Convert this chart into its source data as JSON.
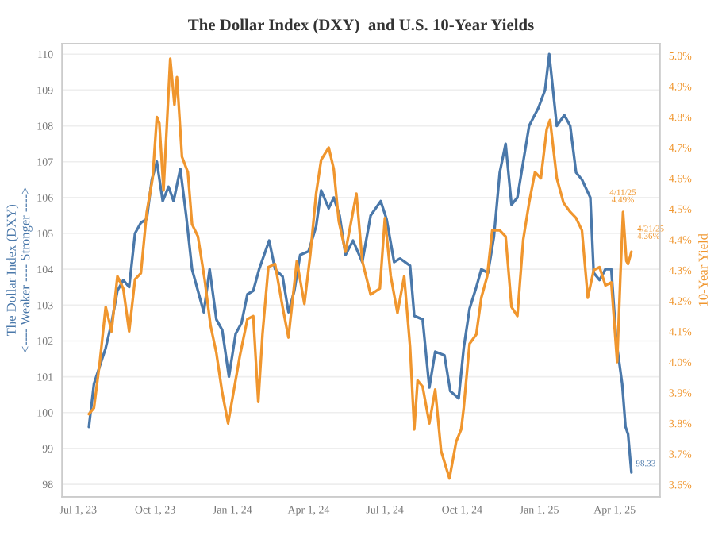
{
  "chart_data": {
    "type": "line",
    "title": "The Dollar Index (DXY)  and U.S. 10-Year Yields",
    "ylabel": "The Dollar Index (DXY)\n<---- Weaker ---- Stronger ---->",
    "y2label": "10-Year Yield",
    "xlim": [
      "2023-06-12",
      "2025-05-25"
    ],
    "xticks": [
      {
        "value": "2023-07-01",
        "label": "Jul 1, 23"
      },
      {
        "value": "2023-10-01",
        "label": "Oct 1, 23"
      },
      {
        "value": "2024-01-01",
        "label": "Jan 1, 24"
      },
      {
        "value": "2024-04-01",
        "label": "Apr 1, 24"
      },
      {
        "value": "2024-07-01",
        "label": "Jul 1, 24"
      },
      {
        "value": "2024-10-01",
        "label": "Oct 1, 24"
      },
      {
        "value": "2025-01-01",
        "label": "Jan 1, 25"
      },
      {
        "value": "2025-04-01",
        "label": "Apr 1, 25"
      }
    ],
    "ylim": [
      97.65,
      110.3
    ],
    "yticks": [
      98,
      99,
      100,
      101,
      102,
      103,
      104,
      105,
      106,
      107,
      108,
      109,
      110
    ],
    "y2lim": [
      3.56,
      5.04
    ],
    "y2ticks": [
      {
        "value": 3.6,
        "label": "3.6%"
      },
      {
        "value": 3.7,
        "label": "3.7%"
      },
      {
        "value": 3.8,
        "label": "3.8%"
      },
      {
        "value": 3.9,
        "label": "3.9%"
      },
      {
        "value": 4.0,
        "label": "4.0%"
      },
      {
        "value": 4.1,
        "label": "4.1%"
      },
      {
        "value": 4.2,
        "label": "4.2%"
      },
      {
        "value": 4.3,
        "label": "4.3%"
      },
      {
        "value": 4.4,
        "label": "4.4%"
      },
      {
        "value": 4.5,
        "label": "4.5%"
      },
      {
        "value": 4.6,
        "label": "4.6%"
      },
      {
        "value": 4.7,
        "label": "4.7%"
      },
      {
        "value": 4.8,
        "label": "4.8%"
      },
      {
        "value": 4.9,
        "label": "4.9%"
      },
      {
        "value": 5.0,
        "label": "5.0%"
      }
    ],
    "grid": "y",
    "legend": false,
    "marker": "none",
    "line_style": "solid",
    "series": [
      {
        "color": "#4a78aa",
        "x": [
          "2023-07-14",
          "2023-07-20",
          "2023-07-27",
          "2023-08-03",
          "2023-08-10",
          "2023-08-17",
          "2023-08-24",
          "2023-08-31",
          "2023-09-07",
          "2023-09-14",
          "2023-09-21",
          "2023-09-27",
          "2023-10-03",
          "2023-10-10",
          "2023-10-17",
          "2023-10-23",
          "2023-10-31",
          "2023-11-07",
          "2023-11-14",
          "2023-11-21",
          "2023-11-28",
          "2023-12-05",
          "2023-12-13",
          "2023-12-20",
          "2023-12-28",
          "2024-01-05",
          "2024-01-12",
          "2024-01-19",
          "2024-01-26",
          "2024-02-02",
          "2024-02-14",
          "2024-02-21",
          "2024-03-01",
          "2024-03-08",
          "2024-03-15",
          "2024-03-22",
          "2024-04-01",
          "2024-04-10",
          "2024-04-16",
          "2024-04-25",
          "2024-05-01",
          "2024-05-08",
          "2024-05-15",
          "2024-05-24",
          "2024-06-04",
          "2024-06-14",
          "2024-06-26",
          "2024-07-03",
          "2024-07-12",
          "2024-07-19",
          "2024-07-31",
          "2024-08-05",
          "2024-08-15",
          "2024-08-23",
          "2024-08-30",
          "2024-09-10",
          "2024-09-17",
          "2024-09-27",
          "2024-10-03",
          "2024-10-10",
          "2024-10-18",
          "2024-10-24",
          "2024-11-01",
          "2024-11-08",
          "2024-11-15",
          "2024-11-22",
          "2024-11-29",
          "2024-12-06",
          "2024-12-13",
          "2024-12-20",
          "2024-12-31",
          "2025-01-08",
          "2025-01-13",
          "2025-01-22",
          "2025-01-31",
          "2025-02-07",
          "2025-02-14",
          "2025-02-21",
          "2025-03-03",
          "2025-03-07",
          "2025-03-14",
          "2025-03-21",
          "2025-03-28",
          "2025-04-03",
          "2025-04-10",
          "2025-04-14",
          "2025-04-17",
          "2025-04-21"
        ],
        "values": [
          99.6,
          100.8,
          101.3,
          101.8,
          102.5,
          103.4,
          103.7,
          103.5,
          105.0,
          105.3,
          105.4,
          106.5,
          107.0,
          105.9,
          106.3,
          105.9,
          106.8,
          105.5,
          104.0,
          103.4,
          102.8,
          104.0,
          102.6,
          102.3,
          101.0,
          102.2,
          102.5,
          103.3,
          103.4,
          104.0,
          104.8,
          104.0,
          103.8,
          102.8,
          103.4,
          104.4,
          104.5,
          105.2,
          106.2,
          105.7,
          106.0,
          105.5,
          104.4,
          104.8,
          104.2,
          105.5,
          105.9,
          105.4,
          104.2,
          104.3,
          104.1,
          102.7,
          102.6,
          100.7,
          101.7,
          101.6,
          100.6,
          100.4,
          101.8,
          102.9,
          103.5,
          104.0,
          103.9,
          104.9,
          106.7,
          107.5,
          105.8,
          106.0,
          107.0,
          108.0,
          108.5,
          109.0,
          110.0,
          108.0,
          108.3,
          108.0,
          106.7,
          106.5,
          106.0,
          103.9,
          103.7,
          104.0,
          104.0,
          102.0,
          100.8,
          99.6,
          99.4,
          98.33
        ]
      },
      {
        "color": "#f0962e",
        "axis": "y2",
        "x": [
          "2023-07-14",
          "2023-07-20",
          "2023-07-27",
          "2023-08-03",
          "2023-08-10",
          "2023-08-17",
          "2023-08-24",
          "2023-08-31",
          "2023-09-07",
          "2023-09-14",
          "2023-09-21",
          "2023-09-28",
          "2023-10-03",
          "2023-10-06",
          "2023-10-11",
          "2023-10-19",
          "2023-10-24",
          "2023-10-27",
          "2023-11-02",
          "2023-11-09",
          "2023-11-14",
          "2023-11-21",
          "2023-11-29",
          "2023-12-06",
          "2023-12-13",
          "2023-12-20",
          "2023-12-27",
          "2024-01-03",
          "2024-01-10",
          "2024-01-19",
          "2024-01-26",
          "2024-02-01",
          "2024-02-06",
          "2024-02-13",
          "2024-02-21",
          "2024-03-01",
          "2024-03-08",
          "2024-03-18",
          "2024-03-27",
          "2024-04-03",
          "2024-04-10",
          "2024-04-16",
          "2024-04-25",
          "2024-05-01",
          "2024-05-07",
          "2024-05-15",
          "2024-05-28",
          "2024-06-04",
          "2024-06-14",
          "2024-06-25",
          "2024-07-01",
          "2024-07-08",
          "2024-07-16",
          "2024-07-24",
          "2024-07-31",
          "2024-08-05",
          "2024-08-09",
          "2024-08-15",
          "2024-08-23",
          "2024-08-30",
          "2024-09-06",
          "2024-09-16",
          "2024-09-24",
          "2024-09-30",
          "2024-10-03",
          "2024-10-10",
          "2024-10-18",
          "2024-10-24",
          "2024-10-31",
          "2024-11-06",
          "2024-11-15",
          "2024-11-22",
          "2024-11-29",
          "2024-12-06",
          "2024-12-13",
          "2024-12-20",
          "2024-12-27",
          "2025-01-03",
          "2025-01-10",
          "2025-01-14",
          "2025-01-22",
          "2025-01-30",
          "2025-02-07",
          "2025-02-14",
          "2025-02-21",
          "2025-02-28",
          "2025-03-07",
          "2025-03-14",
          "2025-03-21",
          "2025-03-28",
          "2025-04-04",
          "2025-04-08",
          "2025-04-11",
          "2025-04-15",
          "2025-04-17",
          "2025-04-21"
        ],
        "values": [
          3.83,
          3.85,
          4.0,
          4.18,
          4.1,
          4.28,
          4.24,
          4.1,
          4.27,
          4.29,
          4.49,
          4.6,
          4.8,
          4.78,
          4.56,
          4.99,
          4.84,
          4.93,
          4.67,
          4.62,
          4.45,
          4.41,
          4.27,
          4.12,
          4.03,
          3.9,
          3.8,
          3.91,
          4.02,
          4.14,
          4.15,
          3.87,
          4.09,
          4.31,
          4.32,
          4.18,
          4.08,
          4.33,
          4.19,
          4.35,
          4.55,
          4.66,
          4.7,
          4.63,
          4.46,
          4.36,
          4.55,
          4.33,
          4.22,
          4.24,
          4.47,
          4.28,
          4.16,
          4.28,
          4.05,
          3.78,
          3.94,
          3.92,
          3.8,
          3.91,
          3.71,
          3.62,
          3.74,
          3.78,
          3.85,
          4.06,
          4.09,
          4.21,
          4.28,
          4.43,
          4.43,
          4.41,
          4.18,
          4.15,
          4.4,
          4.52,
          4.62,
          4.6,
          4.76,
          4.79,
          4.6,
          4.52,
          4.49,
          4.47,
          4.43,
          4.21,
          4.3,
          4.31,
          4.25,
          4.26,
          4.0,
          4.29,
          4.49,
          4.33,
          4.32,
          4.36
        ]
      }
    ],
    "annotations": [
      "4/11/25\n4.49%",
      "4/21/25\n4.36%",
      {
        "text": "98.33",
        "x": "2025-04-21",
        "y": 98.33
      }
    ]
  }
}
